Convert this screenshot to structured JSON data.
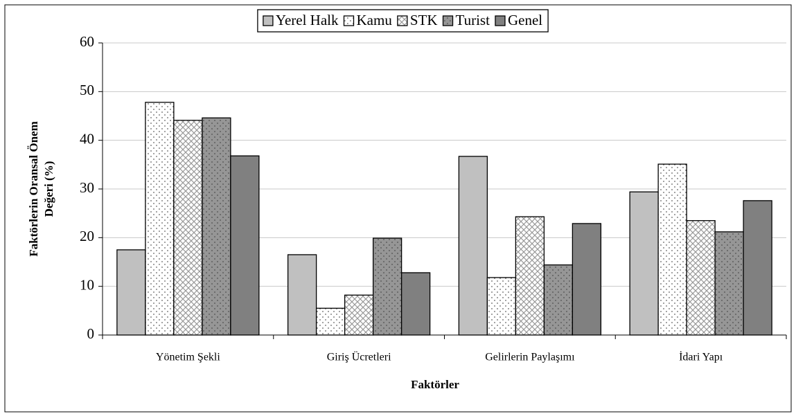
{
  "chart_data": {
    "type": "bar",
    "xlabel": "Faktörler",
    "ylabel": [
      "Faktörlerin Oransal Önem",
      "Değeri (%)"
    ],
    "categories": [
      "Yönetim Şekli",
      "Giriş Ücretleri",
      "Gelirlerin Paylaşımı",
      "İdari Yapı"
    ],
    "series": [
      {
        "name": "Yerel Halk",
        "color": "#c0c0c0",
        "pattern": "solid",
        "values": [
          17.5,
          16.5,
          36.7,
          29.4
        ]
      },
      {
        "name": "Kamu",
        "color": "#ffffff",
        "pattern": "dots",
        "values": [
          47.8,
          5.5,
          11.8,
          35.1
        ]
      },
      {
        "name": "STK",
        "color": "#ffffff",
        "pattern": "cross",
        "values": [
          44.1,
          8.2,
          24.3,
          23.5
        ]
      },
      {
        "name": "Turist",
        "color": "#969696",
        "pattern": "dots",
        "values": [
          44.6,
          19.9,
          14.4,
          21.2
        ]
      },
      {
        "name": "Genel",
        "color": "#808080",
        "pattern": "solid",
        "values": [
          36.8,
          12.8,
          22.9,
          27.6
        ]
      }
    ],
    "ylim": [
      0,
      60
    ],
    "yticks": [
      0,
      10,
      20,
      30,
      40,
      50,
      60
    ],
    "grid": true,
    "legend": "top"
  }
}
